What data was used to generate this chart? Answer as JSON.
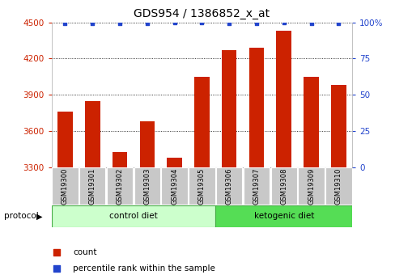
{
  "title": "GDS954 / 1386852_x_at",
  "samples": [
    "GSM19300",
    "GSM19301",
    "GSM19302",
    "GSM19303",
    "GSM19304",
    "GSM19305",
    "GSM19306",
    "GSM19307",
    "GSM19308",
    "GSM19309",
    "GSM19310"
  ],
  "count_values": [
    3760,
    3850,
    3430,
    3680,
    3380,
    4050,
    4270,
    4290,
    4430,
    4050,
    3980
  ],
  "percentile_values": [
    99,
    99,
    99,
    99,
    100,
    100,
    99,
    99,
    100,
    99,
    99
  ],
  "bar_color": "#cc2200",
  "dot_color": "#2244cc",
  "ylim_left": [
    3300,
    4500
  ],
  "ylim_right": [
    0,
    100
  ],
  "yticks_left": [
    3300,
    3600,
    3900,
    4200,
    4500
  ],
  "yticks_right": [
    0,
    25,
    50,
    75,
    100
  ],
  "ytick_labels_right": [
    "0",
    "25",
    "50",
    "75",
    "100%"
  ],
  "control_diet_indices": [
    0,
    1,
    2,
    3,
    4,
    5
  ],
  "ketogenic_diet_indices": [
    6,
    7,
    8,
    9,
    10
  ],
  "control_label": "control diet",
  "ketogenic_label": "ketogenic diet",
  "protocol_label": "protocol",
  "legend_count_label": "count",
  "legend_percentile_label": "percentile rank within the sample",
  "bar_color_hex": "#cc2200",
  "dot_color_hex": "#2244cc",
  "left_axis_color": "#cc2200",
  "right_axis_color": "#2244cc",
  "tick_bg_color": "#c8c8c8",
  "control_bg": "#ccffcc",
  "ketogenic_bg": "#55dd55",
  "bar_width": 0.55
}
